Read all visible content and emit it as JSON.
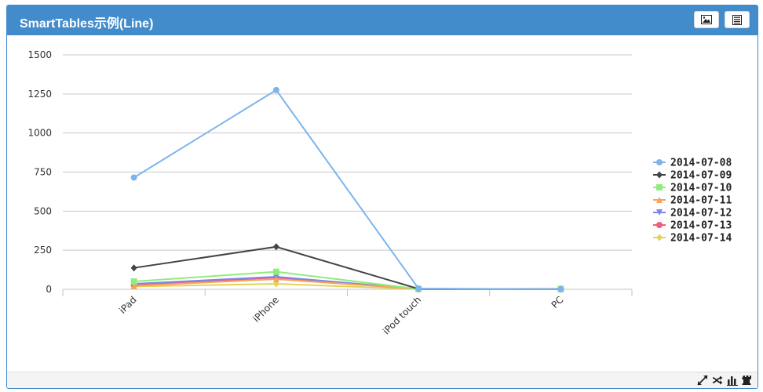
{
  "header": {
    "title": "SmartTables示例(Line)",
    "image_button_icon": "image-icon",
    "table_button_icon": "table-icon"
  },
  "footer": {
    "icons": [
      "expand-icon",
      "shuffle-icon",
      "bar-chart-icon",
      "chess-rook-icon"
    ]
  },
  "colors": {
    "header": "#438ccb",
    "grid": "#c8c8c8"
  },
  "chart_data": {
    "type": "line",
    "categories": [
      "iPad",
      "iPhone",
      "iPod touch",
      "PC"
    ],
    "ylim": [
      0,
      1500
    ],
    "yticks": [
      0,
      250,
      500,
      750,
      1000,
      1250,
      1500
    ],
    "grid": true,
    "legend_position": "right",
    "series": [
      {
        "name": "2014-07-08",
        "color": "#7cb5ec",
        "marker": "circle",
        "values": [
          715,
          1275,
          5,
          1
        ]
      },
      {
        "name": "2014-07-09",
        "color": "#434348",
        "marker": "diamond",
        "values": [
          137,
          272,
          3,
          1
        ]
      },
      {
        "name": "2014-07-10",
        "color": "#90ed7d",
        "marker": "square",
        "values": [
          50,
          112,
          2,
          1
        ]
      },
      {
        "name": "2014-07-11",
        "color": "#f7a35c",
        "marker": "triangle",
        "values": [
          22,
          65,
          2,
          1
        ]
      },
      {
        "name": "2014-07-12",
        "color": "#8085e9",
        "marker": "triangle-down",
        "values": [
          35,
          80,
          2,
          1
        ]
      },
      {
        "name": "2014-07-13",
        "color": "#f15c80",
        "marker": "circle",
        "values": [
          28,
          75,
          2,
          1
        ]
      },
      {
        "name": "2014-07-14",
        "color": "#e4d354",
        "marker": "diamond",
        "values": [
          18,
          35,
          1,
          1
        ]
      }
    ]
  }
}
